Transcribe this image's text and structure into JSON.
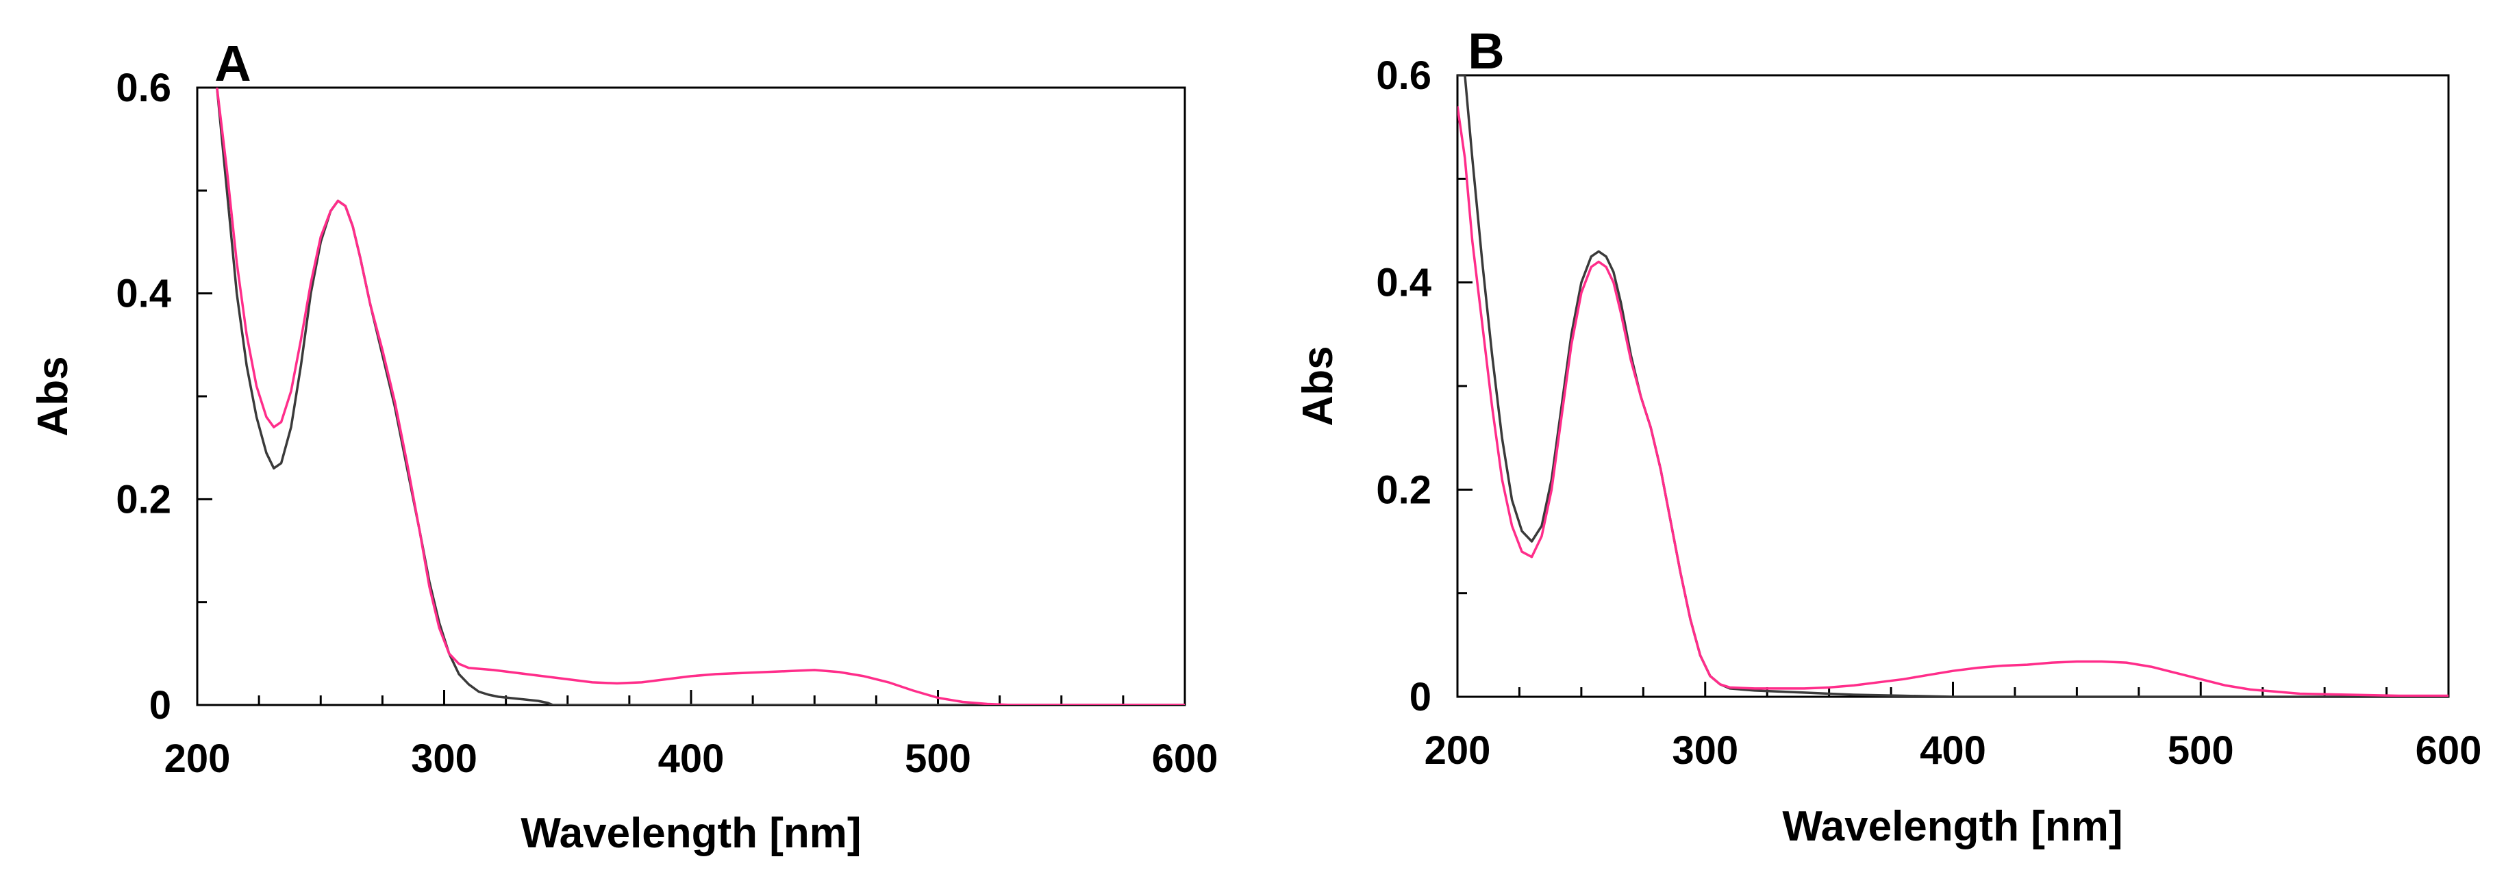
{
  "chart_data": [
    {
      "type": "line",
      "panel_label": "A",
      "xlabel": "Wavelength [nm]",
      "ylabel": "Abs",
      "xlim": [
        200,
        600
      ],
      "ylim": [
        0,
        0.6
      ],
      "x_ticks": [
        200,
        300,
        400,
        500,
        600
      ],
      "x_tick_labels": [
        "200",
        "300",
        "400",
        "500",
        "600"
      ],
      "y_ticks": [
        0,
        0.2,
        0.4,
        0.6
      ],
      "y_tick_labels": [
        "0",
        "0.2",
        "0.4",
        "0.6"
      ],
      "grid": false,
      "series": [
        {
          "color": "#3a3a3a",
          "x": [
            208,
            212,
            216,
            220,
            224,
            228,
            231,
            234,
            238,
            242,
            246,
            250,
            254,
            257,
            260,
            263,
            266,
            270,
            275,
            280,
            285,
            290,
            294,
            298,
            302,
            306,
            310,
            314,
            318,
            322,
            326,
            330,
            334,
            338,
            342,
            344,
            360,
            400,
            450,
            500,
            550,
            600
          ],
          "y": [
            0.6,
            0.5,
            0.4,
            0.33,
            0.28,
            0.245,
            0.23,
            0.235,
            0.27,
            0.33,
            0.4,
            0.45,
            0.48,
            0.49,
            0.485,
            0.465,
            0.435,
            0.39,
            0.34,
            0.29,
            0.23,
            0.17,
            0.12,
            0.08,
            0.05,
            0.03,
            0.02,
            0.013,
            0.01,
            0.008,
            0.007,
            0.006,
            0.005,
            0.004,
            0.002,
            0.0,
            0.0,
            0.0,
            0.0,
            0.0,
            0.0,
            0.0
          ]
        },
        {
          "color": "#ff2d8a",
          "x": [
            208,
            212,
            216,
            220,
            224,
            228,
            231,
            234,
            238,
            242,
            246,
            250,
            254,
            257,
            260,
            263,
            266,
            270,
            275,
            280,
            285,
            290,
            294,
            298,
            302,
            306,
            310,
            315,
            320,
            330,
            340,
            350,
            360,
            370,
            380,
            390,
            400,
            410,
            420,
            430,
            440,
            450,
            460,
            470,
            480,
            490,
            500,
            510,
            520,
            530,
            550,
            600
          ],
          "y": [
            0.6,
            0.52,
            0.43,
            0.36,
            0.31,
            0.28,
            0.27,
            0.275,
            0.305,
            0.355,
            0.41,
            0.455,
            0.48,
            0.49,
            0.485,
            0.465,
            0.435,
            0.39,
            0.345,
            0.295,
            0.235,
            0.17,
            0.115,
            0.075,
            0.05,
            0.04,
            0.036,
            0.035,
            0.034,
            0.031,
            0.028,
            0.025,
            0.022,
            0.021,
            0.022,
            0.025,
            0.028,
            0.03,
            0.031,
            0.032,
            0.033,
            0.034,
            0.032,
            0.028,
            0.022,
            0.014,
            0.007,
            0.003,
            0.001,
            0.0,
            0.0,
            0.0
          ]
        }
      ]
    },
    {
      "type": "line",
      "panel_label": "B",
      "xlabel": "Wavelength [nm]",
      "ylabel": "Abs",
      "xlim": [
        200,
        600
      ],
      "ylim": [
        0,
        0.6
      ],
      "x_ticks": [
        200,
        300,
        400,
        500,
        600
      ],
      "x_tick_labels": [
        "200",
        "300",
        "400",
        "500",
        "600"
      ],
      "y_ticks": [
        0,
        0.2,
        0.4,
        0.6
      ],
      "y_tick_labels": [
        "0",
        "0.2",
        "0.4",
        "0.6"
      ],
      "grid": false,
      "series": [
        {
          "color": "#3a3a3a",
          "x": [
            200,
            203,
            206,
            210,
            214,
            218,
            222,
            226,
            230,
            234,
            238,
            242,
            246,
            250,
            254,
            257,
            260,
            263,
            266,
            270,
            274,
            278,
            282,
            286,
            290,
            294,
            298,
            302,
            306,
            310,
            320,
            330,
            340,
            350,
            360,
            380,
            400,
            450,
            500,
            550,
            600
          ],
          "y": [
            0.6,
            0.6,
            0.52,
            0.42,
            0.33,
            0.25,
            0.19,
            0.16,
            0.15,
            0.165,
            0.21,
            0.28,
            0.35,
            0.4,
            0.425,
            0.43,
            0.425,
            0.41,
            0.38,
            0.33,
            0.29,
            0.26,
            0.22,
            0.17,
            0.12,
            0.075,
            0.04,
            0.02,
            0.012,
            0.008,
            0.006,
            0.005,
            0.004,
            0.003,
            0.002,
            0.001,
            0.0,
            0.0,
            0.0,
            0.0,
            0.0
          ]
        },
        {
          "color": "#ff2d8a",
          "x": [
            200,
            203,
            206,
            210,
            214,
            218,
            222,
            226,
            230,
            234,
            238,
            242,
            246,
            250,
            254,
            257,
            260,
            263,
            266,
            270,
            274,
            278,
            282,
            286,
            290,
            294,
            298,
            302,
            306,
            310,
            320,
            330,
            340,
            350,
            360,
            370,
            380,
            390,
            400,
            410,
            420,
            430,
            440,
            450,
            460,
            470,
            480,
            490,
            500,
            510,
            520,
            530,
            540,
            560,
            580,
            600
          ],
          "y": [
            0.57,
            0.52,
            0.44,
            0.36,
            0.28,
            0.21,
            0.165,
            0.14,
            0.135,
            0.155,
            0.2,
            0.27,
            0.34,
            0.39,
            0.415,
            0.42,
            0.415,
            0.4,
            0.37,
            0.325,
            0.29,
            0.26,
            0.22,
            0.17,
            0.12,
            0.075,
            0.04,
            0.02,
            0.012,
            0.009,
            0.008,
            0.008,
            0.008,
            0.009,
            0.011,
            0.014,
            0.017,
            0.021,
            0.025,
            0.028,
            0.03,
            0.031,
            0.033,
            0.034,
            0.034,
            0.033,
            0.029,
            0.023,
            0.017,
            0.011,
            0.007,
            0.005,
            0.003,
            0.002,
            0.001,
            0.001
          ]
        }
      ]
    }
  ]
}
